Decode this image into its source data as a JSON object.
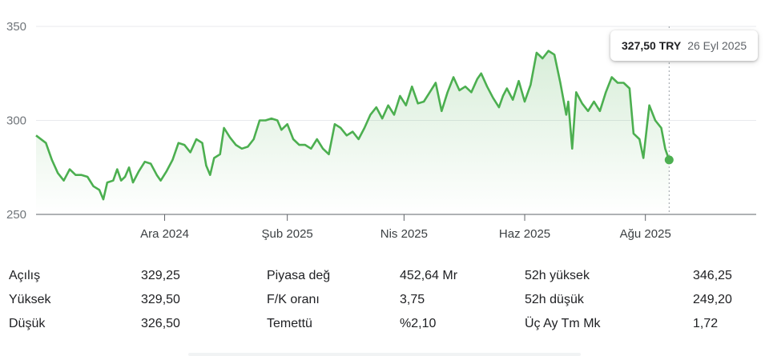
{
  "chart_data": {
    "type": "area",
    "title": "",
    "xlabel": "",
    "ylabel": "",
    "ylim": [
      250,
      350
    ],
    "yticks": [
      "350",
      "300",
      "250"
    ],
    "xticks": [
      {
        "label": "Ara 2024",
        "date": "2024-12-01"
      },
      {
        "label": "Şub 2025",
        "date": "2025-02-01"
      },
      {
        "label": "Nis 2025",
        "date": "2025-04-01"
      },
      {
        "label": "Haz 2025",
        "date": "2025-06-01"
      },
      {
        "label": "Ağu 2025",
        "date": "2025-08-01"
      }
    ],
    "series": [
      {
        "points": [
          [
            "2024-09-27",
            292
          ],
          [
            "2024-10-02",
            288
          ],
          [
            "2024-10-05",
            279
          ],
          [
            "2024-10-08",
            272
          ],
          [
            "2024-10-11",
            268
          ],
          [
            "2024-10-14",
            274
          ],
          [
            "2024-10-17",
            271
          ],
          [
            "2024-10-20",
            271
          ],
          [
            "2024-10-23",
            270
          ],
          [
            "2024-10-26",
            265
          ],
          [
            "2024-10-29",
            263
          ],
          [
            "2024-10-31",
            258
          ],
          [
            "2024-11-02",
            267
          ],
          [
            "2024-11-05",
            268
          ],
          [
            "2024-11-07",
            274
          ],
          [
            "2024-11-09",
            268
          ],
          [
            "2024-11-11",
            270
          ],
          [
            "2024-11-13",
            275
          ],
          [
            "2024-11-15",
            267
          ],
          [
            "2024-11-18",
            273
          ],
          [
            "2024-11-21",
            278
          ],
          [
            "2024-11-24",
            277
          ],
          [
            "2024-11-27",
            271
          ],
          [
            "2024-11-29",
            268
          ],
          [
            "2024-12-02",
            273
          ],
          [
            "2024-12-05",
            279
          ],
          [
            "2024-12-08",
            288
          ],
          [
            "2024-12-11",
            287
          ],
          [
            "2024-12-14",
            283
          ],
          [
            "2024-12-17",
            290
          ],
          [
            "2024-12-20",
            288
          ],
          [
            "2024-12-22",
            276
          ],
          [
            "2024-12-24",
            271
          ],
          [
            "2024-12-26",
            280
          ],
          [
            "2024-12-29",
            282
          ],
          [
            "2024-12-31",
            296
          ],
          [
            "2025-01-03",
            291
          ],
          [
            "2025-01-06",
            287
          ],
          [
            "2025-01-09",
            285
          ],
          [
            "2025-01-12",
            286
          ],
          [
            "2025-01-15",
            290
          ],
          [
            "2025-01-18",
            300
          ],
          [
            "2025-01-21",
            300
          ],
          [
            "2025-01-24",
            301
          ],
          [
            "2025-01-27",
            300
          ],
          [
            "2025-01-29",
            295
          ],
          [
            "2025-02-01",
            298
          ],
          [
            "2025-02-04",
            290
          ],
          [
            "2025-02-07",
            287
          ],
          [
            "2025-02-10",
            287
          ],
          [
            "2025-02-13",
            285
          ],
          [
            "2025-02-16",
            290
          ],
          [
            "2025-02-19",
            285
          ],
          [
            "2025-02-22",
            282
          ],
          [
            "2025-02-25",
            298
          ],
          [
            "2025-02-28",
            296
          ],
          [
            "2025-03-03",
            292
          ],
          [
            "2025-03-06",
            294
          ],
          [
            "2025-03-09",
            290
          ],
          [
            "2025-03-12",
            296
          ],
          [
            "2025-03-15",
            303
          ],
          [
            "2025-03-18",
            307
          ],
          [
            "2025-03-21",
            301
          ],
          [
            "2025-03-24",
            308
          ],
          [
            "2025-03-27",
            303
          ],
          [
            "2025-03-30",
            313
          ],
          [
            "2025-04-02",
            308
          ],
          [
            "2025-04-05",
            318
          ],
          [
            "2025-04-08",
            309
          ],
          [
            "2025-04-11",
            310
          ],
          [
            "2025-04-14",
            315
          ],
          [
            "2025-04-17",
            320
          ],
          [
            "2025-04-20",
            305
          ],
          [
            "2025-04-23",
            315
          ],
          [
            "2025-04-26",
            323
          ],
          [
            "2025-04-29",
            316
          ],
          [
            "2025-05-02",
            318
          ],
          [
            "2025-05-05",
            315
          ],
          [
            "2025-05-08",
            322
          ],
          [
            "2025-05-10",
            325
          ],
          [
            "2025-05-13",
            318
          ],
          [
            "2025-05-16",
            312
          ],
          [
            "2025-05-19",
            307
          ],
          [
            "2025-05-21",
            313
          ],
          [
            "2025-05-23",
            317
          ],
          [
            "2025-05-26",
            311
          ],
          [
            "2025-05-29",
            321
          ],
          [
            "2025-06-01",
            310
          ],
          [
            "2025-06-04",
            319
          ],
          [
            "2025-06-07",
            336
          ],
          [
            "2025-06-10",
            333
          ],
          [
            "2025-06-13",
            337
          ],
          [
            "2025-06-16",
            335
          ],
          [
            "2025-06-19",
            320
          ],
          [
            "2025-06-22",
            303
          ],
          [
            "2025-06-23",
            310
          ],
          [
            "2025-06-25",
            285
          ],
          [
            "2025-06-27",
            315
          ],
          [
            "2025-06-30",
            309
          ],
          [
            "2025-07-03",
            305
          ],
          [
            "2025-07-06",
            310
          ],
          [
            "2025-07-09",
            305
          ],
          [
            "2025-07-12",
            315
          ],
          [
            "2025-07-15",
            323
          ],
          [
            "2025-07-18",
            320
          ],
          [
            "2025-07-21",
            320
          ],
          [
            "2025-07-24",
            317
          ],
          [
            "2025-07-26",
            293
          ],
          [
            "2025-07-29",
            290
          ],
          [
            "2025-07-31",
            280
          ],
          [
            "2025-08-03",
            308
          ],
          [
            "2025-08-06",
            300
          ],
          [
            "2025-08-09",
            296
          ],
          [
            "2025-08-11",
            285
          ],
          [
            "2025-08-13",
            279
          ]
        ]
      }
    ],
    "end_label": "327,50 TRY",
    "end_date_label": "26 Eyl 2025"
  },
  "tooltip": {
    "value": "327,50 TRY",
    "date": "26 Eyl 2025"
  },
  "stats": {
    "rows": [
      [
        {
          "label": "Açılış",
          "value": "329,25"
        },
        {
          "label": "Piyasa değ",
          "value": "452,64 Mr"
        },
        {
          "label": "52h yüksek",
          "value": "346,25"
        }
      ],
      [
        {
          "label": "Yüksek",
          "value": "329,50"
        },
        {
          "label": "F/K oranı",
          "value": "3,75"
        },
        {
          "label": "52h düşük",
          "value": "249,20"
        }
      ],
      [
        {
          "label": "Düşük",
          "value": "326,50"
        },
        {
          "label": "Temettü",
          "value": "%2,10"
        },
        {
          "label": "Üç Ay Tm Mk",
          "value": "1,72"
        }
      ]
    ]
  },
  "colors": {
    "line": "#4caf50",
    "area_top": "#4caf50",
    "grid": "#e8eaed"
  }
}
